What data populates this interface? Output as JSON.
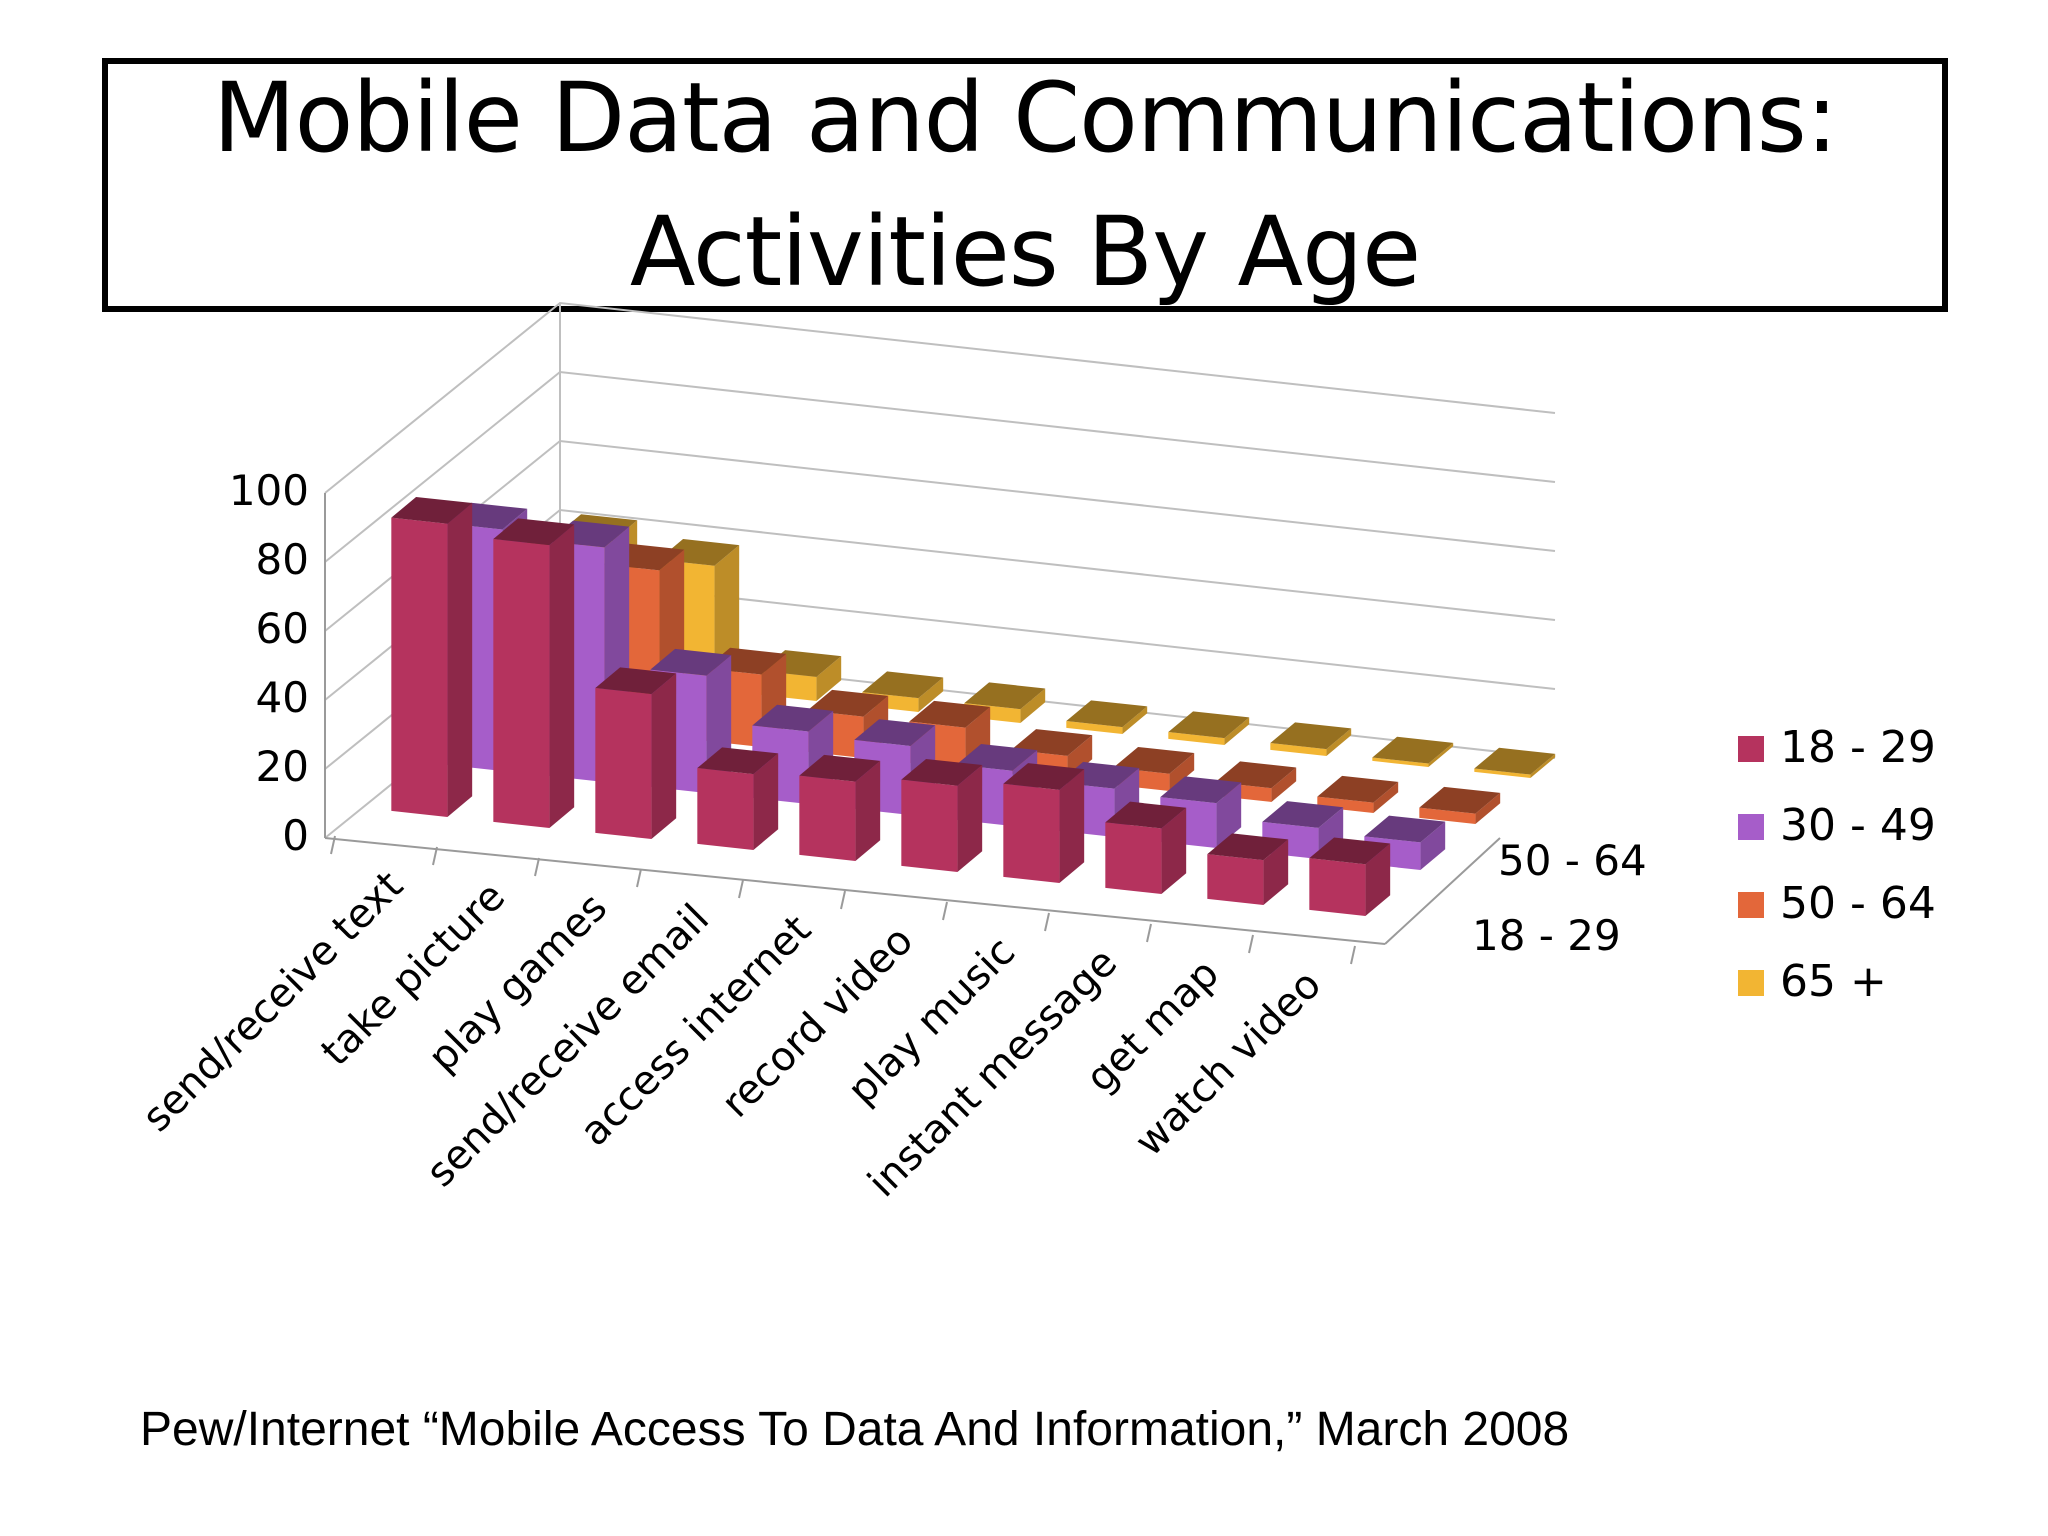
{
  "title": {
    "line1": "Mobile Data and Communications:",
    "line2": "Activities By Age"
  },
  "source": "Pew/Internet “Mobile Access To Data And Information,” March 2008",
  "chart_data": {
    "type": "bar",
    "subtype": "3d-column",
    "title": "Mobile Data and Communications: Activities By Age",
    "categories": [
      "send/receive text",
      "take picture",
      "play games",
      "send/receive email",
      "access internet",
      "record video",
      "play music",
      "instant message",
      "get map",
      "watch video"
    ],
    "series": [
      {
        "name": "18 - 29",
        "color": "#B5335E",
        "values": [
          85,
          82,
          42,
          22,
          23,
          25,
          27,
          19,
          13,
          15
        ]
      },
      {
        "name": "30 - 49",
        "color": "#A65DC9",
        "values": [
          70,
          68,
          34,
          21,
          20,
          16,
          14,
          13,
          9,
          8
        ]
      },
      {
        "name": "50 - 64",
        "color": "#E3673A",
        "values": [
          50,
          48,
          21,
          12,
          12,
          7,
          5,
          4,
          3,
          3
        ]
      },
      {
        "name": "65 +",
        "color": "#F2B533",
        "values": [
          40,
          36,
          7,
          4,
          4,
          2,
          2,
          2,
          1,
          1
        ]
      }
    ],
    "depth_axis_labels": [
      "50 - 64",
      "18 - 29"
    ],
    "yticks": [
      0,
      20,
      40,
      60,
      80,
      100
    ],
    "ylim": [
      0,
      100
    ],
    "legend": {
      "position": "right",
      "entries": [
        "18 - 29",
        "30 - 49",
        "50 - 64",
        "65 +"
      ]
    },
    "grid": true
  }
}
